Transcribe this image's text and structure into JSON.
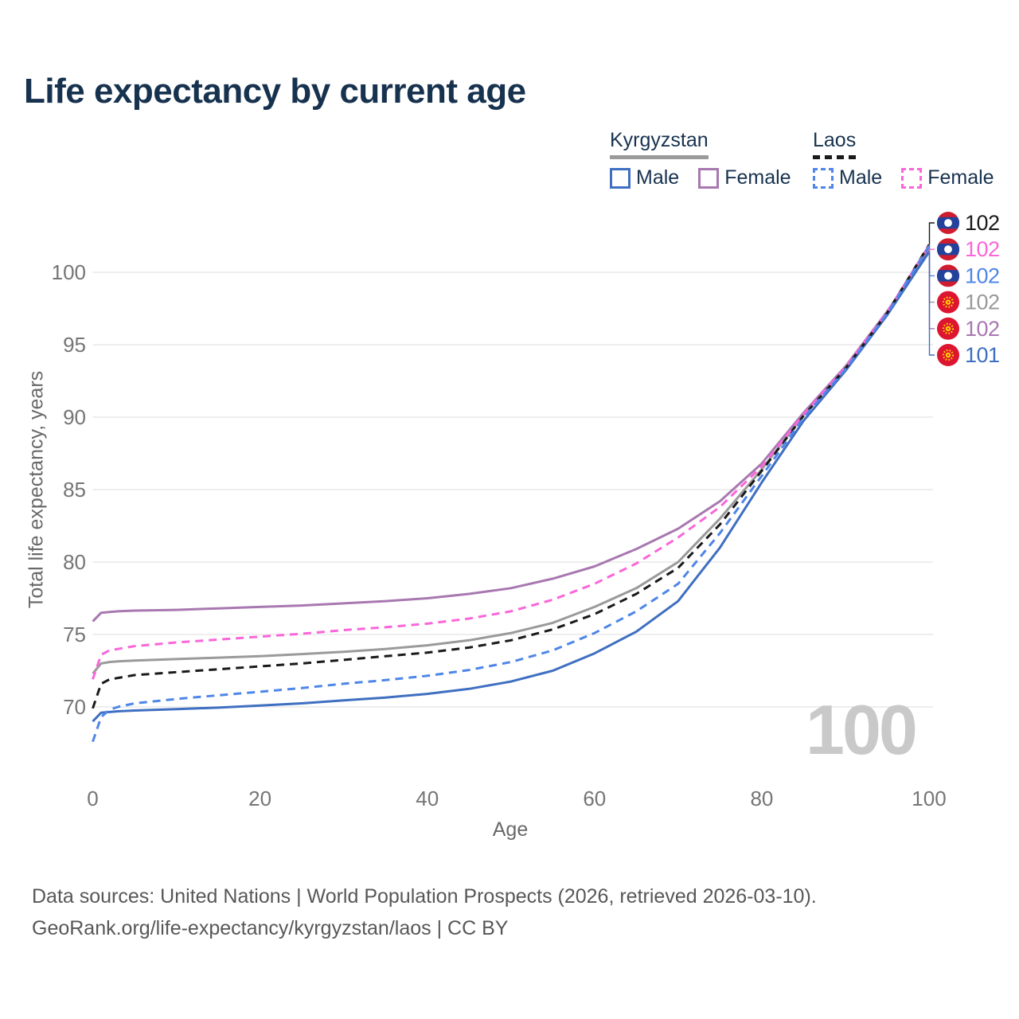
{
  "title": "Life expectancy by current age",
  "legend": {
    "groups": [
      {
        "country": "Kyrgyzstan",
        "style": "solid",
        "underline_color": "#9a9a9a",
        "items": [
          {
            "label": "Male",
            "color": "#3f6fc1",
            "dashed": false
          },
          {
            "label": "Female",
            "color": "#a878b0",
            "dashed": false
          }
        ]
      },
      {
        "country": "Laos",
        "style": "dashed",
        "underline_color": "#1a1a1a",
        "items": [
          {
            "label": "Male",
            "color": "#4e86e8",
            "dashed": true
          },
          {
            "label": "Female",
            "color": "#fa66d9",
            "dashed": true
          }
        ]
      }
    ]
  },
  "watermark": "100",
  "footer": {
    "line1": "Data sources: United Nations | World Population Prospects (2026, retrieved 2026-03-10).",
    "line2": "GeoRank.org/life-expectancy/kyrgyzstan/laos | CC BY"
  },
  "chart_data": {
    "type": "line",
    "title": "Life expectancy by current age",
    "xlabel": "Age",
    "ylabel": "Total life expectancy, years",
    "x_ticks": [
      0,
      20,
      40,
      60,
      80,
      100
    ],
    "y_ticks": [
      70,
      75,
      80,
      85,
      90,
      95,
      100
    ],
    "xlim": [
      0,
      100
    ],
    "ylim": [
      67,
      102
    ],
    "grid": "horizontal",
    "legend_position": "top-right",
    "x": [
      0,
      1,
      2,
      3,
      5,
      10,
      15,
      20,
      25,
      30,
      35,
      40,
      45,
      50,
      55,
      60,
      65,
      70,
      75,
      80,
      85,
      90,
      95,
      100
    ],
    "series": [
      {
        "name": "Kyrgyzstan Total",
        "country": "Kyrgyzstan",
        "sex": "total",
        "color": "#9a9a9a",
        "dashed": false,
        "end_label": "102",
        "flag": "kyrgyzstan",
        "values": [
          72.3,
          73.0,
          73.1,
          73.15,
          73.2,
          73.3,
          73.4,
          73.5,
          73.65,
          73.8,
          74.0,
          74.25,
          74.6,
          75.1,
          75.8,
          76.9,
          78.2,
          80.0,
          83.0,
          86.4,
          90.15,
          93.4,
          97.2,
          101.6
        ]
      },
      {
        "name": "Kyrgyzstan Female",
        "country": "Kyrgyzstan",
        "sex": "female",
        "color": "#a878b0",
        "dashed": false,
        "end_label": "102",
        "flag": "kyrgyzstan",
        "values": [
          75.9,
          76.5,
          76.55,
          76.6,
          76.65,
          76.7,
          76.8,
          76.9,
          77.0,
          77.15,
          77.3,
          77.5,
          77.8,
          78.2,
          78.85,
          79.7,
          80.9,
          82.3,
          84.2,
          86.8,
          90.3,
          93.5,
          97.3,
          101.55
        ]
      },
      {
        "name": "Kyrgyzstan Male",
        "country": "Kyrgyzstan",
        "sex": "male",
        "color": "#3f6fc1",
        "dashed": false,
        "end_label": "101",
        "flag": "kyrgyzstan",
        "values": [
          69.0,
          69.6,
          69.65,
          69.7,
          69.75,
          69.85,
          69.95,
          70.1,
          70.25,
          70.45,
          70.65,
          70.9,
          71.25,
          71.75,
          72.5,
          73.7,
          75.2,
          77.3,
          81.0,
          85.5,
          89.75,
          93.2,
          97.05,
          101.4
        ]
      },
      {
        "name": "Laos Total",
        "country": "Laos",
        "sex": "total",
        "color": "#1a1a1a",
        "dashed": true,
        "end_label": "102",
        "flag": "laos",
        "values": [
          69.9,
          71.6,
          71.9,
          72.0,
          72.2,
          72.4,
          72.6,
          72.8,
          73.0,
          73.25,
          73.5,
          73.75,
          74.1,
          74.6,
          75.35,
          76.4,
          77.8,
          79.6,
          82.6,
          86.3,
          90.1,
          93.35,
          97.2,
          101.9
        ]
      },
      {
        "name": "Laos Female",
        "country": "Laos",
        "sex": "female",
        "color": "#fa66d9",
        "dashed": true,
        "end_label": "102",
        "flag": "laos",
        "values": [
          71.9,
          73.6,
          73.9,
          74.0,
          74.2,
          74.45,
          74.65,
          74.85,
          75.05,
          75.3,
          75.5,
          75.75,
          76.1,
          76.6,
          77.4,
          78.5,
          79.9,
          81.7,
          83.8,
          86.6,
          90.2,
          93.45,
          97.25,
          101.85
        ]
      },
      {
        "name": "Laos Male",
        "country": "Laos",
        "sex": "male",
        "color": "#4e86e8",
        "dashed": true,
        "end_label": "102",
        "flag": "laos",
        "values": [
          67.6,
          69.3,
          69.8,
          70.0,
          70.25,
          70.55,
          70.8,
          71.05,
          71.3,
          71.6,
          71.85,
          72.15,
          72.55,
          73.1,
          73.9,
          75.1,
          76.6,
          78.5,
          82.0,
          85.95,
          89.95,
          93.3,
          97.15,
          101.8
        ]
      }
    ]
  }
}
